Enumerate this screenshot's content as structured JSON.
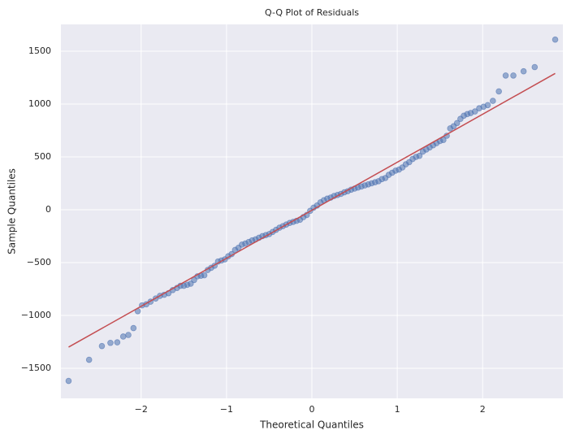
{
  "chart_data": {
    "type": "scatter",
    "title": "Q-Q Plot of Residuals",
    "xlabel": "Theoretical Quantiles",
    "ylabel": "Sample Quantiles",
    "xlim": [
      -2.94,
      2.94
    ],
    "ylim": [
      -1785,
      1754
    ],
    "xticks": [
      {
        "value": -2,
        "label": "−2"
      },
      {
        "value": -1,
        "label": "−1"
      },
      0,
      1,
      2
    ],
    "yticks": [
      {
        "value": -1500,
        "label": "−1500"
      },
      {
        "value": -1000,
        "label": "−1000"
      },
      {
        "value": -500,
        "label": "−500"
      },
      0,
      500,
      1000,
      1500
    ],
    "grid": true,
    "background": "#eaeaf2",
    "series": [
      {
        "mode": "markers",
        "color": "#4c72b0",
        "x": [
          -2.85,
          -2.61,
          -2.46,
          -2.36,
          -2.28,
          -2.21,
          -2.15,
          -2.09,
          -2.04,
          -1.99,
          -1.94,
          -1.89,
          -1.83,
          -1.78,
          -1.73,
          -1.68,
          -1.63,
          -1.58,
          -1.54,
          -1.5,
          -1.46,
          -1.42,
          -1.38,
          -1.34,
          -1.3,
          -1.26,
          -1.22,
          -1.18,
          -1.14,
          -1.1,
          -1.06,
          -1.02,
          -0.98,
          -0.94,
          -0.9,
          -0.86,
          -0.82,
          -0.78,
          -0.74,
          -0.7,
          -0.66,
          -0.62,
          -0.58,
          -0.54,
          -0.5,
          -0.46,
          -0.42,
          -0.38,
          -0.34,
          -0.3,
          -0.26,
          -0.22,
          -0.18,
          -0.14,
          -0.1,
          -0.06,
          -0.02,
          0.02,
          0.06,
          0.1,
          0.14,
          0.18,
          0.22,
          0.26,
          0.3,
          0.34,
          0.38,
          0.42,
          0.46,
          0.5,
          0.54,
          0.58,
          0.62,
          0.66,
          0.7,
          0.74,
          0.78,
          0.82,
          0.86,
          0.9,
          0.94,
          0.98,
          1.02,
          1.06,
          1.1,
          1.14,
          1.18,
          1.22,
          1.26,
          1.3,
          1.34,
          1.38,
          1.42,
          1.46,
          1.5,
          1.54,
          1.58,
          1.62,
          1.66,
          1.7,
          1.74,
          1.78,
          1.82,
          1.86,
          1.91,
          1.96,
          2.01,
          2.06,
          2.12,
          2.19,
          2.27,
          2.36,
          2.48,
          2.61,
          2.85
        ],
        "values": [
          -1620,
          -1420,
          -1290,
          -1260,
          -1255,
          -1200,
          -1185,
          -1120,
          -960,
          -905,
          -895,
          -870,
          -840,
          -815,
          -805,
          -790,
          -760,
          -740,
          -720,
          -720,
          -710,
          -700,
          -665,
          -630,
          -625,
          -620,
          -570,
          -550,
          -530,
          -490,
          -480,
          -470,
          -440,
          -420,
          -380,
          -360,
          -330,
          -320,
          -305,
          -290,
          -280,
          -265,
          -250,
          -240,
          -230,
          -210,
          -190,
          -170,
          -155,
          -140,
          -125,
          -115,
          -105,
          -95,
          -70,
          -50,
          -10,
          20,
          40,
          70,
          90,
          105,
          115,
          130,
          140,
          150,
          165,
          175,
          190,
          200,
          210,
          220,
          230,
          240,
          250,
          260,
          270,
          290,
          300,
          330,
          350,
          370,
          380,
          400,
          430,
          450,
          480,
          500,
          510,
          550,
          570,
          590,
          610,
          630,
          650,
          660,
          700,
          770,
          790,
          820,
          860,
          890,
          905,
          915,
          930,
          960,
          975,
          990,
          1030,
          1120,
          1270,
          1270,
          1310,
          1350,
          1610
        ]
      },
      {
        "mode": "line",
        "color": "#c44e52",
        "x": [
          -2.85,
          2.85
        ],
        "values": [
          -1300,
          1290
        ]
      }
    ]
  }
}
